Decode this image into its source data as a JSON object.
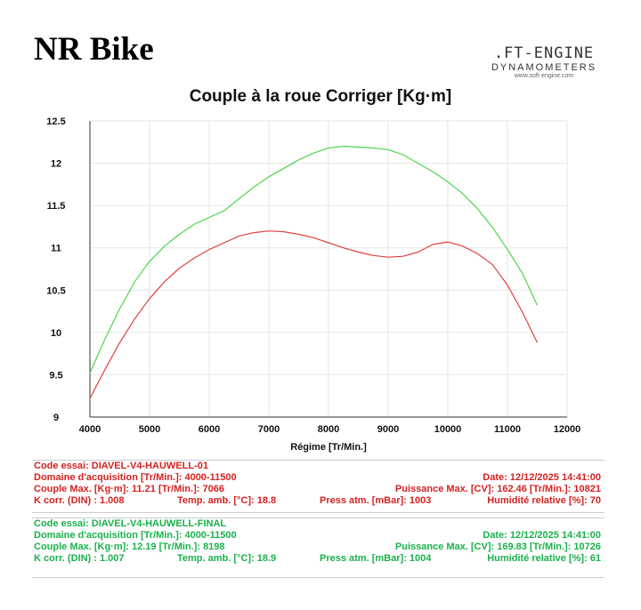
{
  "header": {
    "title": "NR Bike"
  },
  "logo": {
    "line1": ".FT-ENGINE",
    "line2": "DYNAMOMETERS",
    "line3": "www.soft-engine.com"
  },
  "chart_data": {
    "type": "line",
    "title": "Couple à la roue Corriger [Kg·m]",
    "xlabel": "Régime [Tr/Min.]",
    "ylabel": "",
    "xlim": [
      4000,
      12000
    ],
    "ylim": [
      9,
      12.5
    ],
    "xticks": [
      "4000",
      "5000",
      "6000",
      "7000",
      "8000",
      "9000",
      "10000",
      "11000",
      "12000"
    ],
    "yticks": [
      "9",
      "9.5",
      "10",
      "10.5",
      "11",
      "11.5",
      "12",
      "12.5"
    ],
    "series": [
      {
        "name": "DIAVEL-V4-HAUWELL-FINAL",
        "color": "#4dd64d",
        "x": [
          4000,
          4250,
          4500,
          4750,
          5000,
          5250,
          5500,
          5750,
          6000,
          6250,
          6500,
          6750,
          7000,
          7250,
          7500,
          7750,
          8000,
          8250,
          8500,
          8750,
          9000,
          9250,
          9500,
          9750,
          10000,
          10250,
          10500,
          10750,
          11000,
          11250,
          11500
        ],
        "y": [
          9.52,
          9.92,
          10.28,
          10.6,
          10.84,
          11.02,
          11.16,
          11.28,
          11.36,
          11.44,
          11.58,
          11.72,
          11.84,
          11.94,
          12.04,
          12.12,
          12.18,
          12.2,
          12.19,
          12.18,
          12.16,
          12.1,
          12.0,
          11.9,
          11.78,
          11.64,
          11.46,
          11.24,
          10.98,
          10.7,
          10.32
        ]
      },
      {
        "name": "DIAVEL-V4-HAUWELL-01",
        "color": "#e04040",
        "x": [
          4000,
          4250,
          4500,
          4750,
          5000,
          5250,
          5500,
          5750,
          6000,
          6250,
          6500,
          6750,
          7000,
          7250,
          7500,
          7750,
          8000,
          8250,
          8500,
          8750,
          9000,
          9250,
          9500,
          9750,
          10000,
          10250,
          10500,
          10750,
          11000,
          11250,
          11500
        ],
        "y": [
          9.22,
          9.56,
          9.88,
          10.16,
          10.4,
          10.6,
          10.76,
          10.88,
          10.98,
          11.06,
          11.14,
          11.18,
          11.2,
          11.19,
          11.16,
          11.12,
          11.06,
          11.0,
          10.95,
          10.91,
          10.89,
          10.9,
          10.95,
          11.04,
          11.07,
          11.02,
          10.93,
          10.8,
          10.56,
          10.24,
          9.88
        ]
      }
    ]
  },
  "run1": {
    "code": "Code essai: DIAVEL-V4-HAUWELL-01",
    "domaine": "Domaine d'acquisition [Tr/Min.]: 4000-11500",
    "date": "Date: 12/12/2025   14:41:00",
    "couple": "Couple Max. [Kg·m]: 11.21   [Tr/Min.]: 7066",
    "puissance": "Puissance Max. [CV]: 162.46   [Tr/Min.]: 10821",
    "kcorr": "K corr. (DIN) : 1.008",
    "temp": "Temp. amb. [°C]: 18.8",
    "press": "Press atm. [mBar]: 1003",
    "humid": "Humidité relative [%]: 70"
  },
  "run2": {
    "code": "Code essai: DIAVEL-V4-HAUWELL-FINAL",
    "domaine": "Domaine d'acquisition [Tr/Min.]: 4000-11500",
    "date": "Date: 12/12/2025   14:41:00",
    "couple": "Couple Max. [Kg·m]: 12.19   [Tr/Min.]: 8198",
    "puissance": "Puissance Max. [CV]: 169.83   [Tr/Min.]: 10726",
    "kcorr": "K corr. (DIN) : 1.007",
    "temp": "Temp. amb. [°C]: 18.9",
    "press": "Press atm. [mBar]: 1004",
    "humid": "Humidité relative [%]: 61"
  }
}
